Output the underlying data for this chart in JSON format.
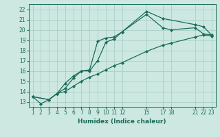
{
  "xlabel": "Humidex (Indice chaleur)",
  "ylabel": "",
  "background_color": "#cce8e0",
  "grid_color": "#aacfc8",
  "line_color": "#1a6b5a",
  "xlim": [
    0.5,
    23.5
  ],
  "ylim": [
    12.5,
    22.5
  ],
  "xticks": [
    1,
    2,
    3,
    4,
    5,
    6,
    7,
    8,
    9,
    10,
    11,
    12,
    15,
    17,
    18,
    21,
    22,
    23
  ],
  "yticks": [
    13,
    14,
    15,
    16,
    17,
    18,
    19,
    20,
    21,
    22
  ],
  "series": [
    {
      "x": [
        1,
        2,
        3,
        4,
        5,
        6,
        7,
        8,
        9,
        10,
        11,
        12,
        15,
        17,
        21,
        22,
        23
      ],
      "y": [
        13.5,
        12.8,
        13.2,
        13.8,
        14.8,
        15.5,
        16.0,
        16.0,
        17.0,
        18.8,
        19.1,
        19.8,
        21.8,
        21.1,
        20.5,
        20.3,
        19.5
      ],
      "marker": "D",
      "markersize": 2.5
    },
    {
      "x": [
        1,
        3,
        4,
        5,
        6,
        7,
        8,
        9,
        10,
        11,
        12,
        15,
        17,
        18,
        21,
        22,
        23
      ],
      "y": [
        13.5,
        13.2,
        13.8,
        14.3,
        15.3,
        16.0,
        16.1,
        18.9,
        19.2,
        19.3,
        19.8,
        21.5,
        20.2,
        20.0,
        20.2,
        19.6,
        19.5
      ],
      "marker": "D",
      "markersize": 2.5
    },
    {
      "x": [
        1,
        3,
        4,
        5,
        6,
        7,
        8,
        9,
        10,
        11,
        12,
        15,
        17,
        18,
        21,
        22,
        23
      ],
      "y": [
        13.5,
        13.2,
        13.8,
        14.0,
        14.5,
        15.0,
        15.4,
        15.7,
        16.1,
        16.5,
        16.8,
        17.9,
        18.5,
        18.7,
        19.3,
        19.5,
        19.4
      ],
      "marker": "D",
      "markersize": 2.5
    }
  ]
}
